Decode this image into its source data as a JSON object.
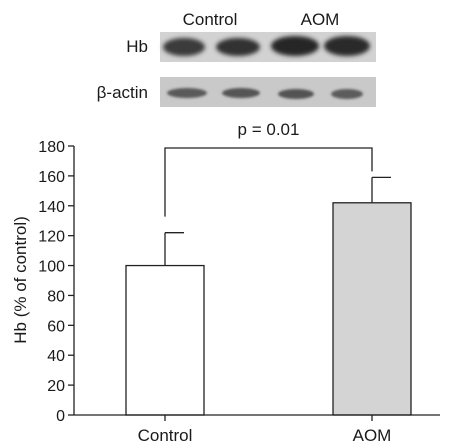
{
  "blot": {
    "lane_groups": [
      "Control",
      "AOM"
    ],
    "rows": [
      {
        "label": "Hb"
      },
      {
        "label": "β-actin"
      }
    ]
  },
  "chart_data": {
    "type": "bar",
    "categories": [
      "Control",
      "AOM"
    ],
    "values": [
      100,
      142
    ],
    "error_upper": [
      22,
      17
    ],
    "bar_colors": [
      "#ffffff",
      "#d4d4d4"
    ],
    "ylabel": "Hb (% of control)",
    "xlabel": "",
    "ylim": [
      0,
      180
    ],
    "yticks": [
      0,
      20,
      40,
      60,
      80,
      100,
      120,
      140,
      160,
      180
    ],
    "grid": false,
    "annotation": "p = 0.01"
  }
}
